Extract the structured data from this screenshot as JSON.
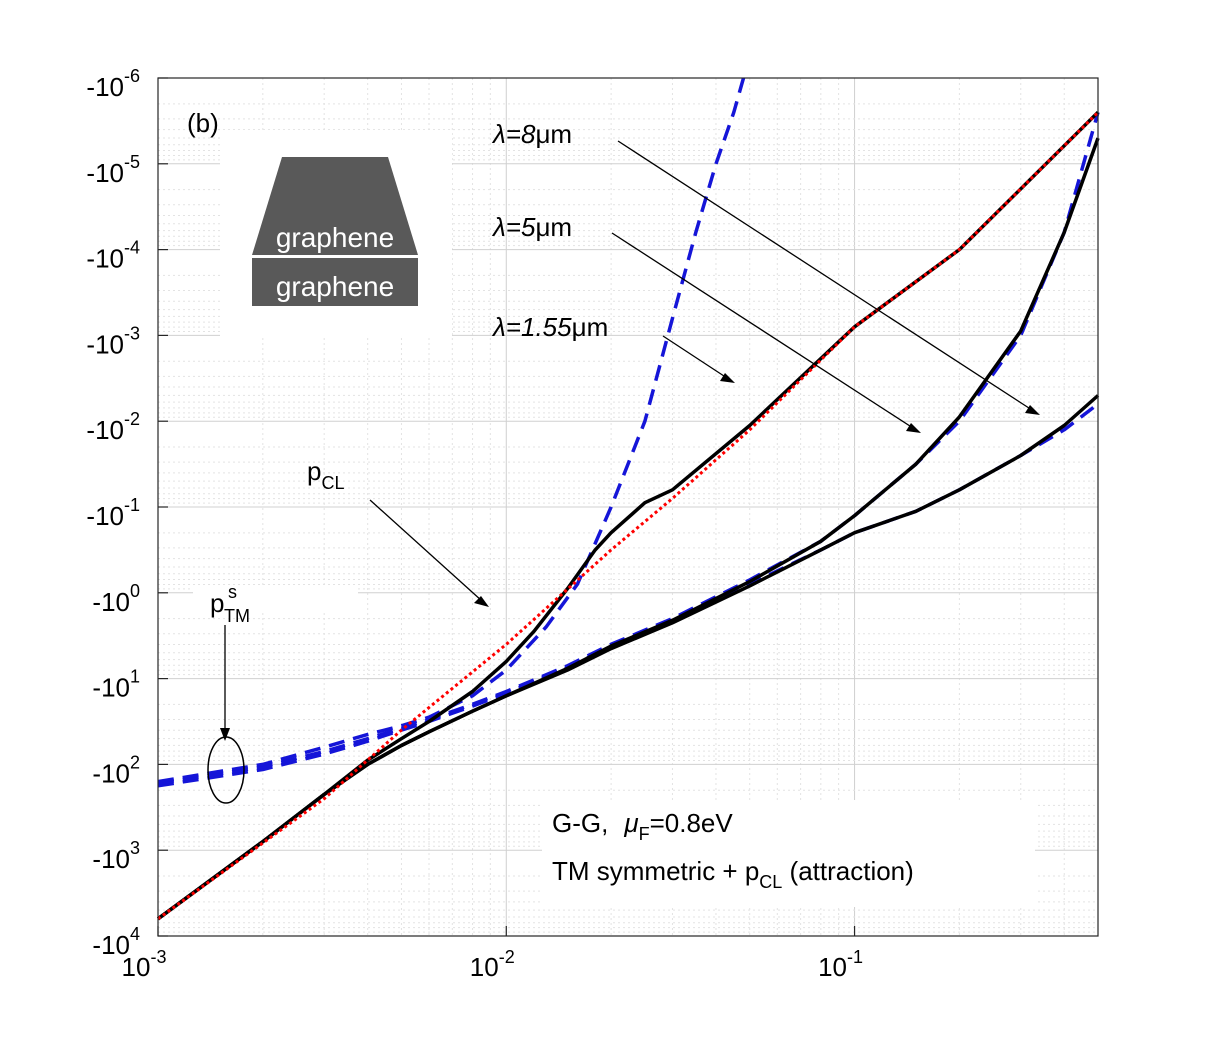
{
  "chart_data": {
    "type": "line",
    "panel_label": "(b)",
    "x_scale": "log",
    "xlim": [
      0.001,
      0.5
    ],
    "y_scale": "log-negative",
    "ylim_log10": [
      -6,
      4
    ],
    "x_ticks": [
      {
        "base": "10",
        "exp": "-3"
      },
      {
        "base": "10",
        "exp": "-2"
      },
      {
        "base": "10",
        "exp": "-1"
      }
    ],
    "y_ticks": [
      {
        "base": "-10",
        "exp": "-6"
      },
      {
        "base": "-10",
        "exp": "-5"
      },
      {
        "base": "-10",
        "exp": "-4"
      },
      {
        "base": "-10",
        "exp": "-3"
      },
      {
        "base": "-10",
        "exp": "-2"
      },
      {
        "base": "-10",
        "exp": "-1"
      },
      {
        "base": "-10",
        "exp": "0"
      },
      {
        "base": "-10",
        "exp": "1"
      },
      {
        "base": "-10",
        "exp": "2"
      },
      {
        "base": "-10",
        "exp": "3"
      },
      {
        "base": "-10",
        "exp": "4"
      }
    ],
    "inset": {
      "top_label": "graphene",
      "bottom_label": "graphene"
    },
    "annotations": {
      "lambda8": {
        "prefix": "λ=8",
        "unit": "μm"
      },
      "lambda5": {
        "prefix": "λ=5",
        "unit": "μm"
      },
      "lambda155": {
        "prefix": "λ=1.55",
        "unit": "μm"
      },
      "pcl": {
        "main": "p",
        "sub": "CL"
      },
      "ptm": {
        "main": "p",
        "sup": "s",
        "sub": "TM"
      }
    },
    "legend": {
      "line1_a": "G-G,",
      "line1_mu": "μ",
      "line1_sub": "F",
      "line1_b": "=0.8eV",
      "line2_a": "TM symmetric + p",
      "line2_sub": "CL",
      "line2_b": " (attraction)"
    },
    "series": [
      {
        "name": "p_CL",
        "style": "dotted",
        "color": "#ff0000",
        "x": [
          0.001,
          0.003,
          0.005,
          0.01,
          0.02,
          0.03,
          0.05,
          0.1,
          0.2,
          0.5
        ],
        "y": [
          3.8,
          2.4,
          1.6,
          0.6,
          -0.5,
          -1.1,
          -1.9,
          -3.1,
          -4.0,
          -5.6
        ]
      },
      {
        "name": "p_TM^s (λ=1.55μm)",
        "style": "dashed",
        "color": "#1515d8",
        "x": [
          0.001,
          0.002,
          0.003,
          0.004,
          0.005,
          0.006,
          0.008,
          0.01,
          0.013,
          0.016,
          0.02,
          0.025,
          0.03,
          0.035,
          0.04,
          0.045,
          0.048
        ],
        "y": [
          2.2,
          2.0,
          1.8,
          1.65,
          1.55,
          1.45,
          1.2,
          0.9,
          0.4,
          -0.1,
          -1.0,
          -2.0,
          -3.2,
          -4.2,
          -5.0,
          -5.6,
          -6.0
        ]
      },
      {
        "name": "p_TM^s (λ=5μm)",
        "style": "dashed",
        "color": "#1515d8",
        "x": [
          0.001,
          0.002,
          0.003,
          0.004,
          0.005,
          0.006,
          0.008,
          0.01,
          0.015,
          0.02,
          0.03,
          0.05,
          0.08,
          0.1,
          0.15,
          0.2,
          0.3,
          0.4,
          0.5
        ],
        "y": [
          2.22,
          2.03,
          1.85,
          1.7,
          1.58,
          1.48,
          1.3,
          1.15,
          0.85,
          0.6,
          0.3,
          -0.15,
          -0.6,
          -0.9,
          -1.5,
          -2.0,
          -3.0,
          -4.2,
          -5.6
        ]
      },
      {
        "name": "p_TM^s (λ=8μm)",
        "style": "dashed",
        "color": "#1515d8",
        "x": [
          0.001,
          0.002,
          0.003,
          0.004,
          0.005,
          0.006,
          0.008,
          0.01,
          0.015,
          0.02,
          0.03,
          0.05,
          0.08,
          0.1,
          0.15,
          0.2,
          0.3,
          0.4,
          0.5
        ],
        "y": [
          2.25,
          2.06,
          1.88,
          1.73,
          1.6,
          1.5,
          1.32,
          1.17,
          0.87,
          0.62,
          0.32,
          -0.1,
          -0.5,
          -0.7,
          -0.95,
          -1.2,
          -1.6,
          -1.9,
          -2.2
        ]
      },
      {
        "name": "total λ=1.55μm",
        "style": "solid",
        "color": "#000000",
        "x": [
          0.001,
          0.002,
          0.003,
          0.004,
          0.005,
          0.006,
          0.008,
          0.01,
          0.012,
          0.015,
          0.018,
          0.02,
          0.025,
          0.03,
          0.05,
          0.1,
          0.2,
          0.5
        ],
        "y": [
          3.8,
          2.9,
          2.35,
          1.95,
          1.7,
          1.5,
          1.15,
          0.8,
          0.45,
          -0.05,
          -0.5,
          -0.7,
          -1.05,
          -1.2,
          -1.95,
          -3.1,
          -4.0,
          -5.6
        ]
      },
      {
        "name": "total λ=5μm",
        "style": "solid",
        "color": "#000000",
        "x": [
          0.001,
          0.002,
          0.003,
          0.004,
          0.005,
          0.006,
          0.008,
          0.01,
          0.015,
          0.02,
          0.03,
          0.05,
          0.08,
          0.1,
          0.15,
          0.2,
          0.3,
          0.4,
          0.5
        ],
        "y": [
          3.8,
          2.9,
          2.35,
          2.0,
          1.78,
          1.62,
          1.38,
          1.2,
          0.88,
          0.62,
          0.32,
          -0.13,
          -0.6,
          -0.9,
          -1.5,
          -2.05,
          -3.05,
          -4.2,
          -5.3
        ]
      },
      {
        "name": "total λ=8μm",
        "style": "solid",
        "color": "#000000",
        "x": [
          0.001,
          0.002,
          0.003,
          0.004,
          0.005,
          0.006,
          0.008,
          0.01,
          0.015,
          0.02,
          0.03,
          0.05,
          0.08,
          0.1,
          0.15,
          0.2,
          0.3,
          0.4,
          0.5
        ],
        "y": [
          3.8,
          2.9,
          2.35,
          2.0,
          1.78,
          1.62,
          1.38,
          1.2,
          0.9,
          0.65,
          0.35,
          -0.08,
          -0.5,
          -0.7,
          -0.95,
          -1.2,
          -1.6,
          -1.95,
          -2.3
        ]
      }
    ]
  }
}
